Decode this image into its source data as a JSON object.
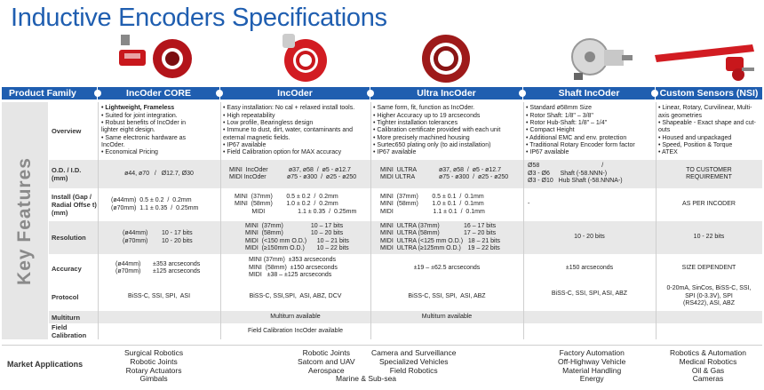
{
  "title": "Inductive Encoders Specifications",
  "colors": {
    "header": "#1f5eb0",
    "product_red": "#c8171c",
    "band": "#e8e8e8"
  },
  "header": [
    "Product Family",
    "IncOder CORE",
    "IncOder",
    "Ultra IncOder",
    "Shaft IncOder",
    "Custom Sensors (NSI)"
  ],
  "key_features_label": "Key Features",
  "rows": {
    "overview": {
      "label": "Overview",
      "core": [
        "Lightweight, Frameless",
        "Suited for joint integration.",
        "Robust benefits of IncOder in lighter eight design.",
        "Same electronic hardware as IncOder.",
        "Economical Pricing"
      ],
      "incoder": [
        "Easy installation: No cal + relaxed install tools.",
        "High repeatability",
        "Low profile, Bearingless design",
        "Immune to dust, dirt, water, contaminants and external magnetic fields.",
        "IP67 available",
        "Field Calibration option for MAX accuracy"
      ],
      "ultra": [
        "Same form, fit, function as IncOder.",
        "Higher Accuracy up to 19 arcseconds",
        "Tighter installation tolerances",
        "Calibration certificate provided with each unit",
        "More precisely machined housing",
        "Surtec650 plating only (to aid installation)",
        "IP67 available"
      ],
      "shaft": [
        "Standard ø58mm Size",
        "Rotor Shaft: 1/8\" – 3/8\"",
        "Rotor Hub-Shaft: 1/8\" – 1/4\"",
        "Compact Height",
        "Additional EMC and env. protection",
        "Traditional Rotary Encoder form factor",
        "IP67 available"
      ],
      "nsi": [
        "Linear, Rotary, Curvilinear, Multi-axis geometries",
        "Shapeable - Exact shape and cut-outs",
        "Housed and unpackaged",
        "Speed, Position & Torque",
        "ATEX"
      ]
    },
    "od": {
      "label": "O.D. / I.D. (mm)",
      "core": "ø44, ø70   /   Ø12.7, Ø30",
      "incoder": "MINI  IncOder            ø37, ø58  /  ø5 - ø12.7\nMIDI IncOder            ø75 - ø300  /  ø25 - ø250",
      "ultra": "MINI  ULTRA             ø37, ø58  /  ø5 - ø12.7\nMIDI ULTRA              ø75 - ø300  /  ø25 - ø250",
      "shaft": "Ø58                                    /\nØ3 - Ø6      Shaft (-58.NNN-)\nØ3 - Ø10   Hub Shaft (-58.NNNA-)",
      "nsi": "TO CUSTOMER\nREQUIREMENT"
    },
    "install": {
      "label": "Install (Gap / Radial Offse t) (mm)",
      "core": "(ø44mm)  0.5 ± 0.2  /  0.2mm\n(ø70mm)  1.1 ± 0.35  /  0.25mm",
      "incoder": "MINI  (37mm)        0.5 ± 0.2  /  0.2mm\nMINI  (58mm)        1.0 ± 0.2  /  0.2mm\n          MIDI                   1.1 ± 0.35  /  0.25mm",
      "ultra": "MINI  (37mm)        0.5 ± 0.1  /  0.1mm\nMINI  (58mm)        1.0 ± 0.1  /  0.1mm\nMIDI                       1.1 ± 0.1  /  0.1mm",
      "shaft": "-",
      "nsi": "AS PER INCODER"
    },
    "resolution": {
      "label": "Resolution",
      "core": "(ø44mm)        10 - 17 bits\n(ø70mm)        10 - 20 bits",
      "incoder": "MINI  (37mm)                10 – 17 bits\nMINI  (58mm)                10 – 20 bits\nMIDI  (<150 mm O.D.)      10 – 21 bits\nMIDI  (≥150mm O.D.)       10 – 22 bits",
      "ultra": "MINI  ULTRA (37mm)              16 – 17 bits\nMINI  ULTRA (58mm)              17 – 20 bits\nMIDI  ULTRA (<125 mm O.D.)   18 – 21 bits\nMIDI  ULTRA (≥125mm O.D.)    19 – 22 bits",
      "shaft": "10 - 20 bits",
      "nsi": "10 - 22 bits"
    },
    "accuracy": {
      "label": "Accuracy",
      "core": "(ø44mm)       ±353 arcseconds\n(ø70mm)       ±125 arcseconds",
      "incoder": "MINI (37mm)  ±353 arcseconds\nMINI  (58mm)  ±150 arcseconds\nMIDI   ±38 – ±125 arcseconds",
      "ultra": "±19 – ±62.5 arcseconds",
      "shaft": "±150 arcseconds",
      "nsi": "SIZE DEPENDENT"
    },
    "protocol": {
      "label": "Protocol",
      "core": "BiSS-C, SSI, SPI,  ASI",
      "incoder": "BiSS-C, SSI,SPI,  ASI, ABZ, DCV",
      "ultra": "BiSS-C, SSI, SPI,  ASI, ABZ",
      "shaft": "BiSS-C, SSI, SPI, ASI, ABZ",
      "nsi": "0-20mA, SinCos, BiSS-C, SSI,\nSPI (0-3.3V), SPI\n(RS422), ASI, ABZ"
    },
    "multiturn": {
      "label": "Multiturn",
      "incoder": "Multiturn available",
      "ultra": "Multiturn available"
    },
    "field": {
      "label": "Field Calibration",
      "incoder": "Field Calibration IncOder available"
    }
  },
  "market": {
    "label": "Market Applications",
    "col1": "Surgical Robotics\nRobotic Joints\nRotary Actuators\nGimbals",
    "col2": "Robotic Joints\nSatcom and UAV\nAerospace",
    "col3": "Camera and Surveillance\nSpecialized Vehicles\nField Robotics",
    "col4": "Marine & Sub-sea",
    "col5": "Factory Automation\nOff-Highway Vehicle\nMaterial Handling\nEnergy",
    "col6": "Robotics & Automation\nMedical Robotics\nOil & Gas\nCameras"
  }
}
